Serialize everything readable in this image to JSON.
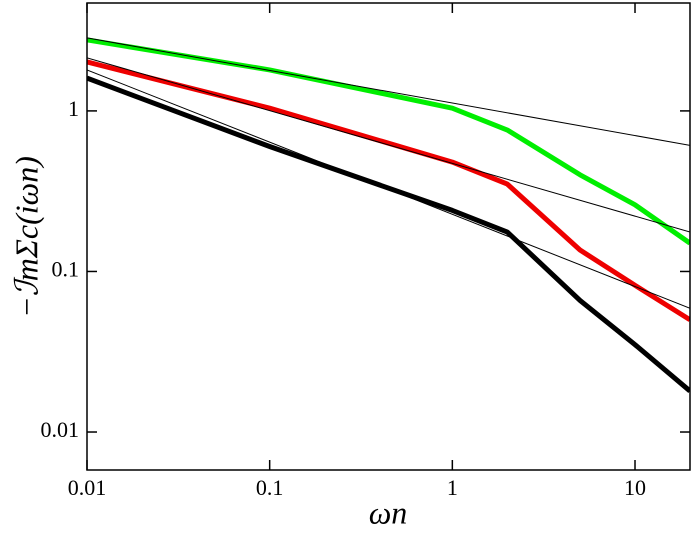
{
  "chart_data": {
    "type": "line",
    "xlabel": "ωn",
    "ylabel": "−ℐmΣc(iωn)",
    "xscale": "log",
    "yscale": "log",
    "xlim": [
      0.01,
      20
    ],
    "ylim": [
      0.0058,
      4.7
    ],
    "xticks": [
      0.01,
      0.1,
      1,
      10
    ],
    "yticks": [
      0.01,
      0.1,
      1
    ],
    "series": [
      {
        "color": "#00ee00",
        "linewidth": 5,
        "x": [
          0.01,
          0.1,
          1,
          2,
          5,
          10,
          20
        ],
        "values": [
          2.77,
          1.8,
          1.04,
          0.76,
          0.4,
          0.26,
          0.15
        ]
      },
      {
        "color": "#ee0000",
        "linewidth": 5,
        "x": [
          0.01,
          0.1,
          1,
          2,
          5,
          10,
          20
        ],
        "values": [
          2.02,
          1.04,
          0.48,
          0.35,
          0.136,
          0.082,
          0.05
        ]
      },
      {
        "color": "#000000",
        "linewidth": 5,
        "x": [
          0.01,
          0.1,
          1,
          2,
          5,
          10,
          20
        ],
        "values": [
          1.6,
          0.6,
          0.24,
          0.176,
          0.066,
          0.035,
          0.018
        ]
      },
      {
        "color": "#000000",
        "linewidth": 1,
        "x": [
          0.01,
          20
        ],
        "values": [
          2.85,
          0.61
        ]
      },
      {
        "color": "#000000",
        "linewidth": 1,
        "x": [
          0.01,
          20
        ],
        "values": [
          2.14,
          0.176
        ]
      },
      {
        "color": "#000000",
        "linewidth": 1,
        "x": [
          0.01,
          20
        ],
        "values": [
          1.8,
          0.059
        ]
      }
    ]
  }
}
